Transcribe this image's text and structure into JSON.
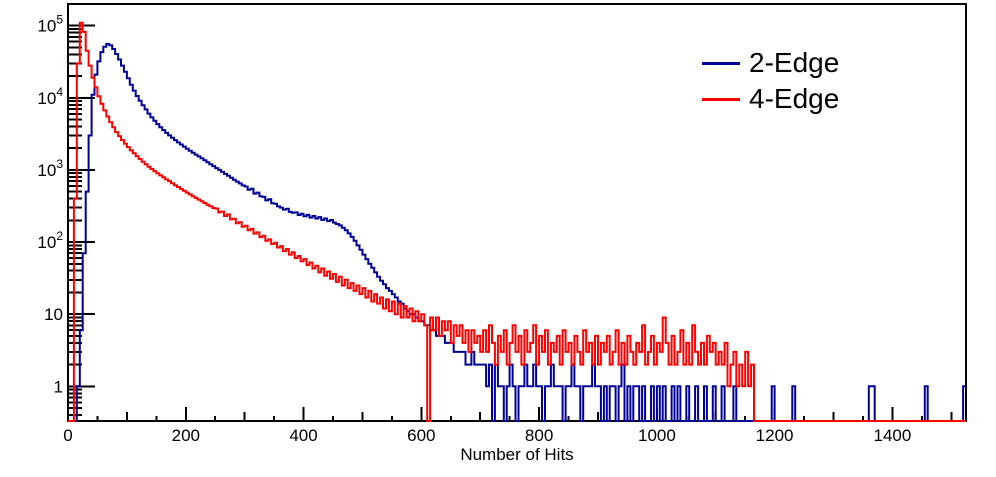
{
  "figure": {
    "background": "#ffffff",
    "legend": {
      "items": [
        {
          "label": "2-Edge",
          "color": "#000099"
        },
        {
          "label": "4-Edge",
          "color": "#ff0000"
        }
      ]
    }
  },
  "chart_data": {
    "type": "line",
    "subtype": "step-histogram",
    "title": "",
    "xlabel": "Number of Hits",
    "ylabel": "",
    "ylog": true,
    "grid": false,
    "legend_position": "top-right",
    "xlim": [
      0,
      1525
    ],
    "ylim": [
      0.33,
      200000
    ],
    "x_bin_width": 5,
    "x_tick_minor_step": 50,
    "x_tick_medium_step": 100,
    "x_tick_major_step": 200,
    "x_tick_labels": [
      "0",
      "200",
      "400",
      "600",
      "800",
      "1000",
      "1200",
      "1400"
    ],
    "y_ticks_labeled": [
      {
        "value": 1,
        "base": "1",
        "exp": ""
      },
      {
        "value": 10,
        "base": "10",
        "exp": ""
      },
      {
        "value": 100,
        "base": "10",
        "exp": "2"
      },
      {
        "value": 1000,
        "base": "10",
        "exp": "3"
      },
      {
        "value": 10000,
        "base": "10",
        "exp": "4"
      },
      {
        "value": 100000,
        "base": "10",
        "exp": "5"
      }
    ],
    "series": [
      {
        "name": "2-Edge",
        "color": "#000099",
        "peak": {
          "x": 65,
          "y": 56000
        },
        "values": [
          0,
          0,
          0,
          1,
          6,
          70,
          500,
          3000,
          11000,
          21000,
          32000,
          43000,
          51000,
          56000,
          53500,
          47500,
          40500,
          34000,
          28000,
          23000,
          18700,
          15200,
          12600,
          10600,
          9100,
          7900,
          6900,
          6050,
          5350,
          4800,
          4320,
          3920,
          3570,
          3260,
          3010,
          2790,
          2590,
          2410,
          2250,
          2110,
          1970,
          1850,
          1730,
          1630,
          1540,
          1450,
          1360,
          1280,
          1200,
          1130,
          1060,
          1000,
          940,
          880,
          830,
          780,
          730,
          690,
          650,
          610,
          590,
          532,
          548,
          470,
          485,
          432,
          423,
          378,
          392,
          345,
          340,
          312,
          300,
          282,
          290,
          262,
          255,
          258,
          237,
          247,
          228,
          238,
          218,
          230,
          212,
          222,
          203,
          212,
          195,
          202,
          186,
          178,
          170,
          158,
          146,
          132,
          118,
          104,
          90,
          78,
          67,
          58,
          50,
          44,
          38,
          33,
          29,
          26,
          23,
          21,
          19,
          17,
          15,
          14,
          12,
          11,
          10,
          10,
          9,
          8,
          8,
          7,
          7,
          6,
          6,
          5,
          5,
          5,
          4,
          4,
          4,
          3,
          3,
          3,
          3,
          2,
          2,
          3,
          2,
          2,
          2,
          2,
          1,
          2,
          0,
          2,
          1,
          1,
          0,
          1,
          2,
          1,
          0,
          1,
          1,
          2,
          1,
          1,
          2,
          1,
          1,
          0,
          1,
          1,
          2,
          1,
          1,
          1,
          0,
          1,
          1,
          2,
          1,
          1,
          0,
          1,
          1,
          1,
          2,
          1,
          1,
          0,
          1,
          0,
          1,
          1,
          0,
          1,
          2,
          0,
          1,
          0,
          1,
          1,
          0,
          1,
          0,
          0,
          1,
          0,
          1,
          0,
          1,
          0,
          0,
          1,
          0,
          1,
          0,
          0,
          1,
          0,
          0,
          1,
          0,
          0,
          1,
          0,
          0,
          1,
          0,
          0,
          1,
          0,
          0,
          0,
          1,
          0,
          0,
          0,
          0,
          0,
          0,
          0,
          0,
          0,
          0,
          0,
          0,
          1,
          0,
          0,
          0,
          0,
          0,
          0,
          1,
          0,
          0,
          0,
          0,
          0,
          0,
          0,
          0,
          0,
          0,
          0,
          0,
          0,
          0,
          0,
          0,
          0,
          0,
          0,
          0,
          0,
          0,
          0,
          0,
          0,
          1,
          1,
          0,
          0,
          0,
          0,
          0,
          0,
          0,
          0,
          0,
          0,
          0,
          0,
          0,
          0,
          0,
          0,
          0,
          1,
          0,
          0,
          0,
          0,
          0,
          0,
          0,
          0,
          0,
          0,
          0,
          0,
          1
        ]
      },
      {
        "name": "4-Edge",
        "color": "#ff0000",
        "peak": {
          "x": 22,
          "y": 110000
        },
        "values": [
          0,
          0,
          400,
          30000,
          110000,
          82000,
          45000,
          28000,
          19000,
          14000,
          10500,
          8300,
          6700,
          5500,
          4600,
          3900,
          3350,
          2950,
          2600,
          2320,
          2080,
          1870,
          1700,
          1550,
          1420,
          1300,
          1200,
          1110,
          1030,
          960,
          900,
          840,
          790,
          740,
          700,
          655,
          615,
          580,
          545,
          515,
          485,
          458,
          432,
          410,
          388,
          368,
          348,
          330,
          313,
          297,
          292,
          258,
          264,
          230,
          242,
          206,
          210,
          182,
          189,
          163,
          168,
          146,
          152,
          131,
          136,
          117,
          122,
          104,
          109,
          94,
          98,
          84,
          88,
          75,
          80,
          67,
          72,
          60,
          64,
          54,
          58,
          48,
          52,
          43,
          47,
          38,
          43,
          34,
          39,
          31,
          36,
          28,
          33,
          25,
          30,
          23,
          27,
          21,
          25,
          19,
          23,
          17,
          21,
          15,
          19,
          14,
          17,
          12,
          16,
          11,
          15,
          10,
          14,
          9,
          13,
          9,
          12,
          8,
          11,
          8,
          10,
          7,
          0,
          9,
          6,
          9,
          5,
          8,
          6,
          8,
          4,
          7,
          5,
          7,
          4,
          6,
          3,
          6,
          4,
          5,
          3,
          6,
          3,
          7,
          4,
          2,
          5,
          3,
          6,
          2,
          4,
          7,
          3,
          5,
          2,
          6,
          3,
          4,
          7,
          2,
          5,
          3,
          6,
          2,
          4,
          3,
          5,
          2,
          6,
          3,
          4,
          2,
          5,
          3,
          2,
          6,
          3,
          4,
          2,
          5,
          2,
          4,
          3,
          5,
          2,
          3,
          6,
          2,
          4,
          2,
          5,
          3,
          2,
          4,
          3,
          7,
          2,
          3,
          5,
          2,
          4,
          3,
          9,
          4,
          2,
          5,
          2,
          3,
          6,
          2,
          4,
          2,
          7,
          3,
          2,
          4,
          2,
          5,
          3,
          4,
          2,
          3,
          2,
          4,
          1,
          2,
          3,
          1,
          2,
          1,
          3,
          1,
          2,
          0,
          0,
          0,
          0,
          0,
          0,
          0,
          0,
          0,
          0,
          0,
          0,
          0,
          0,
          0,
          0,
          0,
          0,
          0,
          0,
          0,
          0,
          0,
          0,
          0,
          0,
          0,
          0,
          0,
          0,
          0,
          0,
          0,
          0,
          0,
          0,
          0,
          0,
          0,
          0,
          0,
          0,
          0,
          0,
          0,
          0,
          0,
          0,
          0,
          0,
          0,
          0,
          0,
          0,
          0,
          0,
          0,
          0,
          0,
          0,
          0,
          0,
          0,
          0,
          0,
          0,
          0,
          0,
          0,
          0,
          0,
          0
        ]
      }
    ]
  }
}
